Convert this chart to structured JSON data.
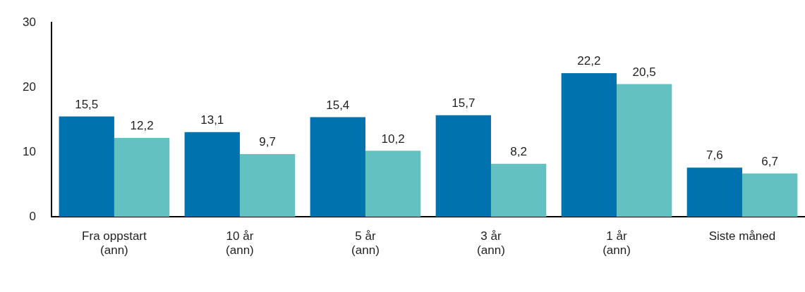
{
  "chart_data": {
    "type": "bar",
    "categories": [
      "Fra oppstart\n(ann)",
      "10 år\n(ann)",
      "5 år\n(ann)",
      "3 år\n(ann)",
      "1 år\n(ann)",
      "Siste måned"
    ],
    "series": [
      {
        "color": "#0073ae",
        "values": [
          15.5,
          13.1,
          15.4,
          15.7,
          22.2,
          7.6
        ],
        "value_labels": [
          "15,5",
          "13,1",
          "15,4",
          "15,7",
          "22,2",
          "7,6"
        ]
      },
      {
        "color": "#63c2c1",
        "values": [
          12.2,
          9.7,
          10.2,
          8.2,
          20.5,
          6.7
        ],
        "value_labels": [
          "12,2",
          "9,7",
          "10,2",
          "8,2",
          "20,5",
          "6,7"
        ]
      }
    ],
    "ylim": [
      0,
      30
    ],
    "yticks": [
      0,
      10,
      20,
      30
    ],
    "grid": false,
    "legend": false
  }
}
